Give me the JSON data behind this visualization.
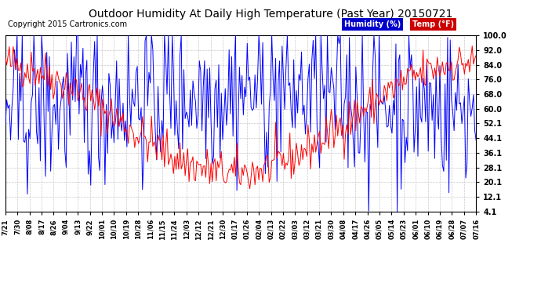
{
  "title": "Outdoor Humidity At Daily High Temperature (Past Year) 20150721",
  "copyright": "Copyright 2015 Cartronics.com",
  "legend_humidity": "Humidity (%)",
  "legend_temp": "Temp (°F)",
  "ylabel_right_ticks": [
    4.1,
    12.1,
    20.1,
    28.1,
    36.1,
    44.1,
    52.1,
    60.0,
    68.0,
    76.0,
    84.0,
    92.0,
    100.0
  ],
  "ymin": 4.1,
  "ymax": 100.0,
  "bg_color": "#ffffff",
  "grid_color": "#bbbbbb",
  "title_fontsize": 11,
  "copyright_fontsize": 7,
  "x_tick_labels": [
    "7/21\n0",
    "7/30\n0",
    "8/08\n0",
    "8/17\n0",
    "8/26\n0",
    "9/04\n0",
    "9/13\n0",
    "9/22\n0",
    "10/01\n0",
    "10/10\n0",
    "10/19\n0",
    "10/28\n0",
    "11/06\n0",
    "11/15\n0",
    "11/24\n0",
    "12/03\n0",
    "12/12\n0",
    "12/21\n0",
    "12/30\n0",
    "01/17\n0",
    "01/26\n0",
    "02/04\n0",
    "02/13\n0",
    "02/22\n0",
    "03/03\n0",
    "03/12\n0",
    "03/21\n0",
    "03/30\n0",
    "04/08\n0",
    "04/17\n0",
    "04/26\n0",
    "05/05\n0",
    "05/14\n0",
    "05/23\n0",
    "06/01\n0",
    "06/10\n0",
    "06/19\n0",
    "06/28\n0",
    "07/07\n0",
    "07/16\n0"
  ],
  "x_tick_labels_clean": [
    "7/21",
    "7/30",
    "8/08",
    "8/17",
    "8/26",
    "9/04",
    "9/13",
    "9/22",
    "10/01",
    "10/10",
    "10/19",
    "10/28",
    "11/06",
    "11/15",
    "11/24",
    "12/03",
    "12/12",
    "12/21",
    "12/30",
    "01/17",
    "01/26",
    "02/04",
    "02/13",
    "02/22",
    "03/03",
    "03/12",
    "03/21",
    "03/30",
    "04/08",
    "04/17",
    "04/26",
    "05/05",
    "05/14",
    "05/23",
    "06/01",
    "06/10",
    "06/19",
    "06/28",
    "07/07",
    "07/16"
  ],
  "num_points": 365,
  "humidity_color": "#0000ff",
  "temp_color": "#ff0000",
  "humidity_legend_bg": "#0000aa",
  "temp_legend_bg": "#cc0000"
}
